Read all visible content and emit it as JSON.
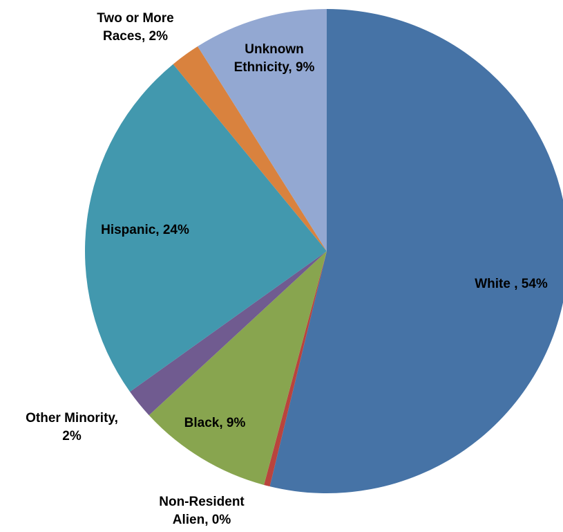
{
  "chart_data": {
    "type": "pie",
    "title": "",
    "start_angle_deg": 0,
    "direction": "clockwise",
    "slices": [
      {
        "label": "White ",
        "value": 54,
        "percent_label": "54%",
        "color": "#4673A6",
        "label_lines": [
          "White , 54%"
        ]
      },
      {
        "label": "Non-Resident Alien",
        "value": 0.4,
        "percent_label": "0%",
        "color": "#B9443D",
        "label_lines": [
          "Non-Resident",
          "Alien, 0%"
        ]
      },
      {
        "label": "Black",
        "value": 9,
        "percent_label": "9%",
        "color": "#88A54F",
        "label_lines": [
          "Black, 9%"
        ]
      },
      {
        "label": "Other Minority",
        "value": 2,
        "percent_label": "2%",
        "color": "#705B90",
        "label_lines": [
          "Other Minority,",
          "2%"
        ]
      },
      {
        "label": "Hispanic",
        "value": 24,
        "percent_label": "24%",
        "color": "#4298AE",
        "label_lines": [
          "Hispanic, 24%"
        ]
      },
      {
        "label": "Two or More Races",
        "value": 2,
        "percent_label": "2%",
        "color": "#D9823E",
        "label_lines": [
          "Two or More",
          "Races, 2%"
        ]
      },
      {
        "label": "Unknown Ethnicity",
        "value": 9,
        "percent_label": "9%",
        "color": "#93A8D2",
        "label_lines": [
          "Unknown",
          "Ethnicity, 9%"
        ]
      }
    ]
  }
}
